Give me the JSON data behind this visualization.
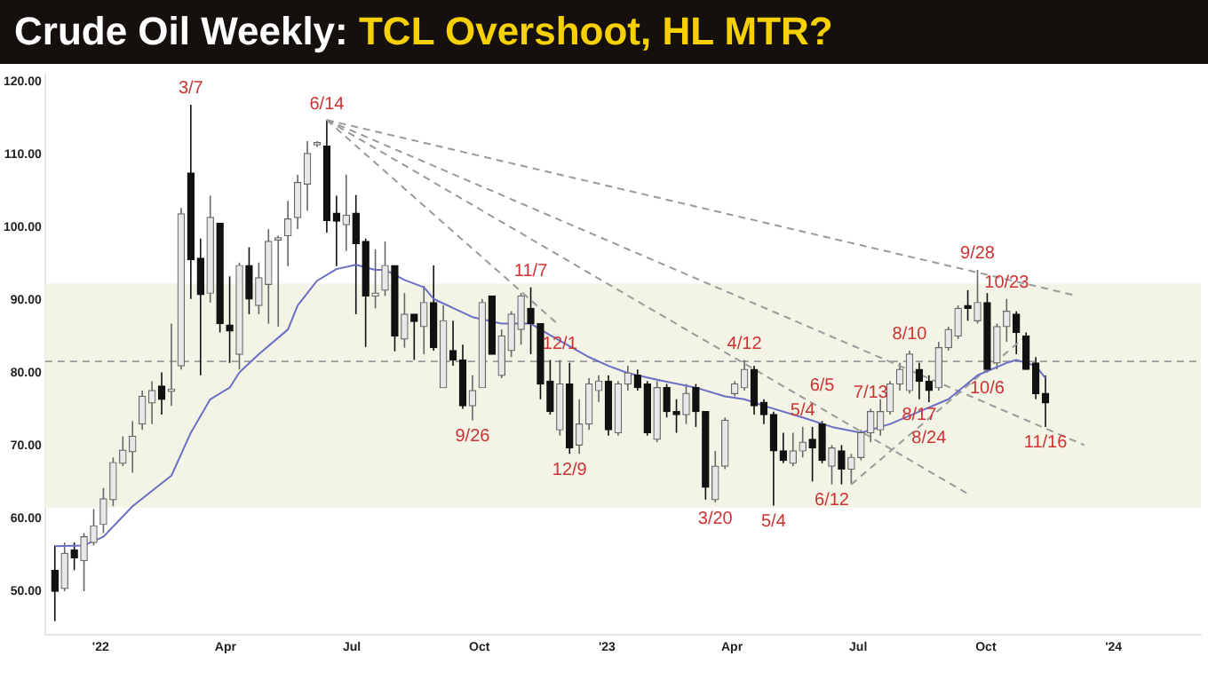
{
  "chart_data": {
    "type": "candlestick",
    "title": "Crude Oil Weekly: TCL Overshoot, HL MTR?",
    "x": [
      "2021-11-29",
      "2021-12-06",
      "2021-12-13",
      "2021-12-20",
      "2021-12-27",
      "2022-01-03",
      "2022-01-10",
      "2022-01-17",
      "2022-01-24",
      "2022-01-31",
      "2022-02-07",
      "2022-02-14",
      "2022-02-21",
      "2022-02-28",
      "2022-03-07",
      "2022-03-14",
      "2022-03-21",
      "2022-03-28",
      "2022-04-04",
      "2022-04-11",
      "2022-04-18",
      "2022-04-25",
      "2022-05-02",
      "2022-05-09",
      "2022-05-16",
      "2022-05-23",
      "2022-05-30",
      "2022-06-06",
      "2022-06-13",
      "2022-06-20",
      "2022-06-27",
      "2022-07-04",
      "2022-07-11",
      "2022-07-18",
      "2022-07-25",
      "2022-08-01",
      "2022-08-08",
      "2022-08-15",
      "2022-08-22",
      "2022-08-29",
      "2022-09-05",
      "2022-09-12",
      "2022-09-19",
      "2022-09-26",
      "2022-10-03",
      "2022-10-10",
      "2022-10-17",
      "2022-10-24",
      "2022-10-31",
      "2022-11-07",
      "2022-11-14",
      "2022-11-21",
      "2022-11-28",
      "2022-12-05",
      "2022-12-12",
      "2022-12-19",
      "2022-12-26",
      "2023-01-02",
      "2023-01-09",
      "2023-01-16",
      "2023-01-23",
      "2023-01-30",
      "2023-02-06",
      "2023-02-13",
      "2023-02-20",
      "2023-02-27",
      "2023-03-06",
      "2023-03-13",
      "2023-03-20",
      "2023-03-27",
      "2023-04-03",
      "2023-04-10",
      "2023-04-17",
      "2023-04-24",
      "2023-05-01",
      "2023-05-08",
      "2023-05-15",
      "2023-05-22",
      "2023-05-29",
      "2023-06-05",
      "2023-06-12",
      "2023-06-19",
      "2023-06-26",
      "2023-07-03",
      "2023-07-10",
      "2023-07-17",
      "2023-07-24",
      "2023-07-31",
      "2023-08-07",
      "2023-08-14",
      "2023-08-21",
      "2023-08-28",
      "2023-09-04",
      "2023-09-11",
      "2023-09-18",
      "2023-09-25",
      "2023-10-02",
      "2023-10-09",
      "2023-10-16",
      "2023-10-23",
      "2023-10-30",
      "2023-11-06",
      "2023-11-13"
    ],
    "ohlc": [
      [
        52.9,
        56.3,
        45.9,
        50.0
      ],
      [
        50.4,
        56.7,
        50.0,
        55.2
      ],
      [
        55.7,
        56.7,
        52.9,
        54.6
      ],
      [
        54.2,
        58.0,
        50.0,
        57.5
      ],
      [
        56.7,
        61.3,
        56.3,
        59.0
      ],
      [
        59.2,
        64.2,
        58.0,
        62.7
      ],
      [
        62.6,
        68.4,
        61.7,
        67.7
      ],
      [
        67.6,
        71.3,
        67.2,
        69.4
      ],
      [
        69.2,
        73.4,
        66.3,
        71.3
      ],
      [
        73.0,
        77.6,
        72.2,
        76.8
      ],
      [
        75.9,
        78.9,
        73.0,
        77.6
      ],
      [
        78.2,
        80.1,
        74.3,
        76.4
      ],
      [
        77.5,
        86.8,
        75.5,
        77.8
      ],
      [
        81.0,
        102.7,
        80.5,
        101.9
      ],
      [
        107.5,
        116.9,
        90.2,
        95.6
      ],
      [
        95.8,
        98.5,
        79.7,
        90.8
      ],
      [
        91.0,
        104.4,
        89.7,
        101.4
      ],
      [
        100.6,
        100.6,
        85.6,
        86.8
      ],
      [
        86.6,
        93.3,
        81.4,
        85.8
      ],
      [
        82.6,
        95.2,
        80.5,
        94.8
      ],
      [
        94.8,
        97.3,
        88.1,
        90.2
      ],
      [
        89.3,
        95.2,
        88.1,
        93.1
      ],
      [
        92.2,
        99.8,
        86.8,
        98.1
      ],
      [
        98.3,
        98.9,
        86.4,
        98.6
      ],
      [
        98.9,
        103.7,
        94.7,
        101.2
      ],
      [
        101.4,
        107.3,
        99.8,
        106.2
      ],
      [
        106.0,
        111.9,
        102.3,
        110.2
      ],
      [
        111.4,
        111.9,
        111.1,
        111.7
      ],
      [
        111.2,
        114.8,
        99.3,
        101.0
      ],
      [
        102.0,
        104.4,
        94.7,
        100.9
      ],
      [
        100.4,
        107.3,
        96.8,
        101.7
      ],
      [
        102.0,
        104.5,
        88.1,
        97.8
      ],
      [
        98.1,
        98.5,
        83.6,
        90.6
      ],
      [
        90.6,
        97.0,
        88.9,
        91.0
      ],
      [
        91.4,
        98.1,
        90.6,
        94.8
      ],
      [
        94.8,
        94.8,
        83.0,
        85.1
      ],
      [
        84.7,
        91.0,
        83.5,
        88.1
      ],
      [
        88.1,
        88.1,
        81.8,
        87.1
      ],
      [
        86.4,
        92.0,
        82.6,
        89.7
      ],
      [
        89.7,
        94.8,
        83.1,
        83.5
      ],
      [
        78.0,
        89.3,
        78.0,
        87.2
      ],
      [
        83.1,
        87.2,
        81.0,
        81.8
      ],
      [
        81.8,
        83.9,
        75.1,
        75.5
      ],
      [
        75.5,
        79.7,
        73.5,
        77.6
      ],
      [
        78.0,
        90.2,
        78.0,
        89.7
      ],
      [
        90.6,
        90.6,
        82.6,
        82.6
      ],
      [
        79.7,
        86.0,
        79.3,
        85.1
      ],
      [
        83.1,
        88.5,
        82.2,
        88.1
      ],
      [
        86.0,
        91.0,
        83.9,
        90.6
      ],
      [
        88.9,
        91.8,
        82.6,
        86.8
      ],
      [
        86.8,
        86.8,
        76.4,
        78.5
      ],
      [
        78.9,
        81.8,
        74.3,
        74.7
      ],
      [
        72.2,
        81.8,
        71.4,
        78.5
      ],
      [
        78.5,
        81.4,
        68.9,
        69.7
      ],
      [
        70.1,
        76.4,
        68.9,
        73.0
      ],
      [
        73.0,
        79.3,
        72.2,
        78.5
      ],
      [
        77.6,
        79.7,
        76.0,
        78.9
      ],
      [
        78.9,
        79.7,
        71.4,
        72.2
      ],
      [
        71.8,
        78.9,
        71.4,
        78.5
      ],
      [
        78.5,
        81.0,
        77.6,
        80.0
      ],
      [
        79.7,
        80.5,
        77.6,
        78.0
      ],
      [
        78.5,
        78.9,
        71.4,
        71.8
      ],
      [
        70.9,
        78.9,
        70.5,
        78.0
      ],
      [
        78.0,
        78.5,
        73.9,
        74.7
      ],
      [
        74.7,
        76.4,
        71.8,
        74.3
      ],
      [
        74.3,
        78.5,
        73.0,
        77.2
      ],
      [
        78.0,
        78.5,
        72.6,
        74.7
      ],
      [
        74.7,
        74.7,
        62.6,
        64.3
      ],
      [
        62.6,
        69.3,
        62.2,
        67.2
      ],
      [
        67.2,
        73.9,
        66.8,
        73.5
      ],
      [
        77.2,
        78.9,
        76.8,
        78.5
      ],
      [
        78.0,
        81.8,
        77.6,
        80.5
      ],
      [
        80.5,
        81.0,
        74.3,
        75.5
      ],
      [
        76.0,
        76.4,
        73.0,
        74.3
      ],
      [
        74.3,
        74.7,
        61.8,
        69.3
      ],
      [
        69.3,
        71.8,
        67.6,
        68.0
      ],
      [
        67.6,
        71.8,
        67.2,
        69.3
      ],
      [
        69.3,
        72.6,
        68.4,
        70.5
      ],
      [
        70.9,
        72.6,
        65.1,
        69.7
      ],
      [
        73.0,
        73.4,
        67.6,
        68.0
      ],
      [
        67.2,
        70.1,
        64.7,
        69.7
      ],
      [
        69.3,
        70.1,
        64.7,
        66.8
      ],
      [
        66.8,
        68.9,
        64.7,
        68.4
      ],
      [
        68.4,
        72.2,
        68.0,
        71.8
      ],
      [
        71.8,
        75.1,
        70.5,
        74.7
      ],
      [
        72.2,
        76.4,
        71.4,
        74.7
      ],
      [
        74.7,
        78.9,
        74.3,
        78.5
      ],
      [
        78.5,
        81.4,
        77.6,
        80.5
      ],
      [
        77.6,
        83.1,
        77.2,
        82.6
      ],
      [
        80.5,
        81.4,
        76.4,
        78.9
      ],
      [
        78.9,
        79.7,
        76.0,
        77.6
      ],
      [
        78.0,
        84.3,
        77.6,
        83.5
      ],
      [
        83.5,
        86.4,
        83.1,
        86.0
      ],
      [
        85.1,
        89.3,
        84.7,
        88.9
      ],
      [
        89.3,
        91.4,
        87.2,
        88.9
      ],
      [
        87.2,
        94.2,
        86.8,
        89.7
      ],
      [
        89.7,
        91.0,
        80.1,
        80.5
      ],
      [
        81.4,
        86.8,
        80.5,
        86.4
      ],
      [
        86.4,
        90.2,
        84.3,
        88.5
      ],
      [
        88.1,
        88.5,
        82.6,
        85.6
      ],
      [
        85.1,
        85.6,
        80.5,
        80.5
      ],
      [
        81.4,
        82.2,
        76.4,
        77.2
      ],
      [
        77.2,
        79.7,
        72.6,
        75.9
      ]
    ],
    "series": [
      {
        "type": "line",
        "color": "#6a6ec4",
        "line_style": "solid",
        "x": [
          "2021-11-29",
          "2021-12-20",
          "2022-01-03",
          "2022-01-24",
          "2022-02-21",
          "2022-03-07",
          "2022-03-21",
          "2022-04-04",
          "2022-04-11",
          "2022-04-25",
          "2022-05-16",
          "2022-05-23",
          "2022-06-06",
          "2022-06-20",
          "2022-07-04",
          "2022-07-18",
          "2022-07-25",
          "2022-08-08",
          "2022-08-22",
          "2022-08-29",
          "2022-09-26",
          "2022-10-17",
          "2022-11-07",
          "2022-11-21",
          "2022-12-19",
          "2023-01-02",
          "2023-01-16",
          "2023-02-06",
          "2023-03-06",
          "2023-03-27",
          "2023-04-10",
          "2023-04-24",
          "2023-05-22",
          "2023-06-12",
          "2023-07-03",
          "2023-07-24",
          "2023-08-14",
          "2023-09-04",
          "2023-09-25",
          "2023-10-16",
          "2023-10-23",
          "2023-11-06",
          "2023-11-13"
        ],
        "values": [
          56.2,
          56.3,
          57.5,
          61.7,
          65.9,
          71.8,
          76.4,
          78.0,
          80.1,
          82.6,
          86.0,
          89.3,
          92.7,
          94.3,
          94.9,
          94.2,
          94.2,
          92.8,
          91.8,
          90.2,
          87.7,
          86.8,
          86.8,
          85.2,
          82.2,
          81.0,
          80.0,
          79.1,
          78.0,
          76.8,
          76.4,
          75.5,
          73.9,
          72.6,
          71.8,
          73.0,
          74.7,
          76.4,
          79.7,
          81.4,
          81.8,
          81.0,
          79.3
        ]
      },
      {
        "type": "line",
        "color": "#9a9a9a",
        "line_style": "dashed",
        "x": [
          "2022-06-13",
          "2023-12-04"
        ],
        "values": [
          114.8,
          90.7
        ]
      },
      {
        "type": "line",
        "color": "#9a9a9a",
        "line_style": "dashed",
        "x": [
          "2022-06-13",
          "2023-12-11"
        ],
        "values": [
          114.8,
          70.1
        ]
      },
      {
        "type": "line",
        "color": "#9a9a9a",
        "line_style": "dashed",
        "x": [
          "2022-06-13",
          "2023-09-18"
        ],
        "values": [
          114.8,
          63.4
        ]
      },
      {
        "type": "line",
        "color": "#9a9a9a",
        "line_style": "dashed",
        "x": [
          "2022-06-13",
          "2022-11-28"
        ],
        "values": [
          114.8,
          86.5
        ]
      },
      {
        "type": "line",
        "color": "#9a9a9a",
        "line_style": "dashed",
        "x": [
          "2023-06-26",
          "2023-10-30"
        ],
        "values": [
          64.7,
          85.1
        ]
      }
    ],
    "bands": [
      {
        "axis": "y",
        "from": 61.5,
        "to": 92.3,
        "color": "#f3f4e6"
      }
    ],
    "ref_lines": [
      {
        "axis": "y",
        "value": 81.6,
        "color": "#9a9a9a",
        "line_style": "dashed"
      }
    ],
    "annotations": [
      {
        "text": "3/7",
        "x": "2022-03-07",
        "y": 116.9
      },
      {
        "text": "6/14",
        "x": "2022-06-13",
        "y": 114.8
      },
      {
        "text": "11/7",
        "x": "2022-11-07",
        "y": 91.8
      },
      {
        "text": "12/1",
        "x": "2022-11-28",
        "y": 81.8
      },
      {
        "text": "9/26",
        "x": "2022-09-26",
        "y": 73.5
      },
      {
        "text": "12/9",
        "x": "2022-12-05",
        "y": 68.9
      },
      {
        "text": "3/20",
        "x": "2023-03-20",
        "y": 62.2
      },
      {
        "text": "5/4",
        "x": "2023-05-01",
        "y": 61.8
      },
      {
        "text": "4/12",
        "x": "2023-04-10",
        "y": 81.8
      },
      {
        "text": "5/4",
        "x": "2023-05-22",
        "y": 72.6
      },
      {
        "text": "6/5",
        "x": "2023-06-05",
        "y": 73.4
      },
      {
        "text": "6/12",
        "x": "2023-06-12",
        "y": 64.7
      },
      {
        "text": "7/13",
        "x": "2023-07-10",
        "y": 75.1
      },
      {
        "text": "8/10",
        "x": "2023-08-07",
        "y": 83.1
      },
      {
        "text": "8/17",
        "x": "2023-08-14",
        "y": 76.4
      },
      {
        "text": "8/24",
        "x": "2023-08-21",
        "y": 76.0
      },
      {
        "text": "9/28",
        "x": "2023-09-25",
        "y": 94.2
      },
      {
        "text": "10/23",
        "x": "2023-10-16",
        "y": 90.2
      },
      {
        "text": "10/6",
        "x": "2023-10-02",
        "y": 80.1
      },
      {
        "text": "11/16",
        "x": "2023-11-13",
        "y": 72.6
      }
    ],
    "xlim": [
      "2021-11-22",
      "2024-03-04"
    ],
    "xticks": [
      {
        "value": "2022-01-01",
        "label": "'22"
      },
      {
        "value": "2022-04-01",
        "label": "Apr"
      },
      {
        "value": "2022-07-01",
        "label": "Jul"
      },
      {
        "value": "2022-10-01",
        "label": "Oct"
      },
      {
        "value": "2023-01-01",
        "label": "'23"
      },
      {
        "value": "2023-04-01",
        "label": "Apr"
      },
      {
        "value": "2023-07-01",
        "label": "Jul"
      },
      {
        "value": "2023-10-01",
        "label": "Oct"
      },
      {
        "value": "2024-01-01",
        "label": "'24"
      }
    ],
    "ylim": [
      44,
      121
    ],
    "yticks": [
      {
        "value": 50,
        "label": "50.00"
      },
      {
        "value": 60,
        "label": "60.00"
      },
      {
        "value": 70,
        "label": "70.00"
      },
      {
        "value": 80,
        "label": "80.00"
      },
      {
        "value": 90,
        "label": "90.00"
      },
      {
        "value": 100,
        "label": "100.00"
      },
      {
        "value": 110,
        "label": "110.00"
      },
      {
        "value": 120,
        "label": "120.00"
      }
    ],
    "grid": false,
    "legend": false
  }
}
